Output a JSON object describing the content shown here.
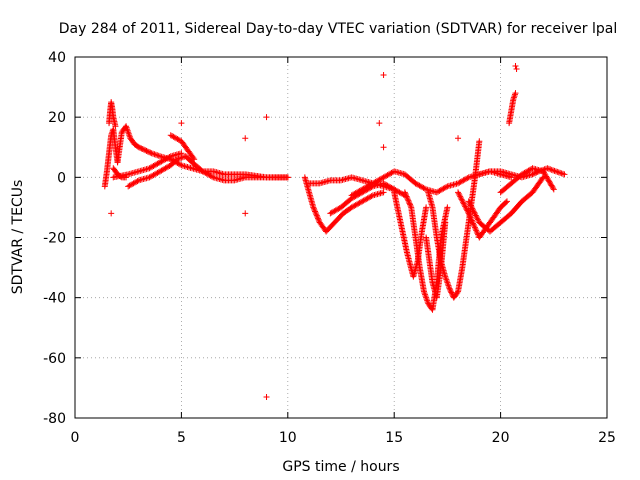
{
  "chart_data": {
    "type": "scatter",
    "title": "Day 284 of 2011, Sidereal Day-to-day VTEC variation (SDTVAR) for receiver lpal",
    "xlabel": "GPS time / hours",
    "ylabel": "SDTVAR / TECUs",
    "xlim": [
      0,
      25
    ],
    "ylim": [
      -80,
      40
    ],
    "xticks": [
      "0",
      "5",
      "10",
      "15",
      "20",
      "25"
    ],
    "yticks": [
      "40",
      "20",
      "0",
      "-20",
      "-40",
      "-60",
      "-80"
    ],
    "grid": true,
    "marker": "+",
    "series": [
      {
        "name": "SDTVAR",
        "color": "#ff0000",
        "tracks": [
          {
            "x": [
              1.6,
              1.65,
              1.7,
              1.75,
              1.8,
              1.9
            ],
            "y": [
              18,
              22,
              25,
              23,
              20,
              17
            ]
          },
          {
            "x": [
              1.4,
              1.5,
              1.6,
              1.7,
              1.8,
              1.9,
              2.0
            ],
            "y": [
              -3,
              2,
              8,
              14,
              16,
              10,
              5
            ]
          },
          {
            "x": [
              2.0,
              2.2,
              2.4,
              2.6,
              2.8,
              3.0,
              3.3,
              3.6,
              4.0,
              4.5,
              5.0,
              5.5,
              6.0,
              6.5,
              7.0,
              7.5,
              8.0,
              9.0,
              10.0
            ],
            "y": [
              5,
              15,
              17,
              13,
              11,
              10,
              9,
              8,
              7,
              6,
              4,
              3,
              2,
              2,
              1,
              1,
              1,
              0,
              0
            ]
          },
          {
            "x": [
              2.5,
              3.0,
              3.5,
              4.0,
              4.5,
              4.8,
              5.2,
              5.5,
              6.0,
              6.5,
              7.0,
              7.5,
              8.0,
              9.0,
              10.0
            ],
            "y": [
              -3,
              -1,
              0,
              2,
              4,
              6,
              7,
              5,
              2,
              0,
              -1,
              -1,
              0,
              0,
              0
            ]
          },
          {
            "x": [
              1.8,
              2.5,
              3.0,
              3.5,
              4.0,
              4.5,
              5.0
            ],
            "y": [
              0,
              1,
              2,
              3,
              5,
              7,
              8
            ]
          },
          {
            "x": [
              1.8,
              2.0,
              2.2,
              2.4
            ],
            "y": [
              3,
              1,
              0,
              0
            ]
          },
          {
            "x": [
              4.5,
              5.0,
              5.3,
              5.6
            ],
            "y": [
              14,
              12,
              9,
              6
            ]
          },
          {
            "x": [
              10.8,
              11.0,
              11.2,
              11.5,
              11.8,
              12.2,
              12.6,
              13.0,
              13.5,
              14.0,
              14.5
            ],
            "y": [
              0,
              -5,
              -10,
              -15,
              -18,
              -15,
              -12,
              -10,
              -8,
              -6,
              -5
            ]
          },
          {
            "x": [
              11.0,
              11.5,
              12.0,
              12.5,
              13.0,
              13.5,
              14.0,
              14.5,
              15.0
            ],
            "y": [
              -2,
              -2,
              -1,
              -1,
              0,
              -1,
              -2,
              -3,
              -4
            ]
          },
          {
            "x": [
              12.0,
              12.5,
              13.0,
              13.5,
              14.0,
              14.5,
              15.0,
              15.5
            ],
            "y": [
              -12,
              -10,
              -7,
              -5,
              -3,
              -2,
              -4,
              -6
            ]
          },
          {
            "x": [
              13.0,
              13.5,
              14.0,
              14.5,
              15.0,
              15.5,
              16.0
            ],
            "y": [
              -6,
              -4,
              -2,
              0,
              2,
              1,
              -2
            ]
          },
          {
            "x": [
              15.0,
              15.3,
              15.6,
              15.9,
              16.1,
              16.3,
              16.5
            ],
            "y": [
              -5,
              -15,
              -25,
              -33,
              -28,
              -18,
              -10
            ]
          },
          {
            "x": [
              15.5,
              15.8,
              16.0,
              16.2,
              16.4,
              16.6,
              16.8,
              17.0,
              17.2,
              17.5
            ],
            "y": [
              -5,
              -10,
              -20,
              -30,
              -38,
              -42,
              -44,
              -35,
              -20,
              -10
            ]
          },
          {
            "x": [
              16.5,
              16.8,
              17.0,
              17.2,
              17.4
            ],
            "y": [
              -20,
              -35,
              -40,
              -30,
              -15
            ]
          },
          {
            "x": [
              16.6,
              16.8,
              17.0,
              17.2,
              17.4,
              17.6,
              17.8,
              18.0,
              18.2,
              18.5,
              18.8,
              19.0
            ],
            "y": [
              -5,
              -10,
              -20,
              -28,
              -33,
              -37,
              -40,
              -38,
              -30,
              -15,
              0,
              12
            ]
          },
          {
            "x": [
              16.0,
              16.5,
              17.0,
              17.5,
              18.0,
              18.5,
              19.0,
              19.5,
              20.0,
              20.5
            ],
            "y": [
              -2,
              -4,
              -5,
              -3,
              -2,
              0,
              1,
              2,
              1,
              0
            ]
          },
          {
            "x": [
              18.0,
              18.5,
              19.0,
              19.5,
              20.0,
              20.3
            ],
            "y": [
              -5,
              -12,
              -20,
              -15,
              -10,
              -8
            ]
          },
          {
            "x": [
              18.5,
              19.0,
              19.5,
              20.0,
              20.5,
              21.0,
              21.5,
              22.0
            ],
            "y": [
              -8,
              -15,
              -18,
              -15,
              -12,
              -8,
              -5,
              0
            ]
          },
          {
            "x": [
              19.0,
              19.5,
              20.0,
              20.5,
              21.0,
              21.5,
              21.8,
              22.2,
              22.6,
              23.0
            ],
            "y": [
              1,
              2,
              2,
              1,
              0,
              1,
              2,
              3,
              2,
              1
            ]
          },
          {
            "x": [
              20.0,
              20.5,
              21.0,
              21.5,
              22.0,
              22.5
            ],
            "y": [
              -5,
              -2,
              1,
              3,
              2,
              -4
            ]
          },
          {
            "x": [
              20.4,
              20.5,
              20.6,
              20.7
            ],
            "y": [
              18,
              22,
              26,
              28
            ]
          }
        ],
        "outliers": [
          {
            "x": 9.0,
            "y": -73
          },
          {
            "x": 14.5,
            "y": 34
          },
          {
            "x": 20.7,
            "y": 37
          },
          {
            "x": 20.75,
            "y": 36
          },
          {
            "x": 9.0,
            "y": 20
          },
          {
            "x": 8.0,
            "y": 13
          },
          {
            "x": 8.0,
            "y": -12
          },
          {
            "x": 14.3,
            "y": 18
          },
          {
            "x": 14.5,
            "y": 10
          },
          {
            "x": 1.7,
            "y": -12
          },
          {
            "x": 18.0,
            "y": 13
          },
          {
            "x": 5.0,
            "y": 18
          }
        ]
      }
    ]
  }
}
